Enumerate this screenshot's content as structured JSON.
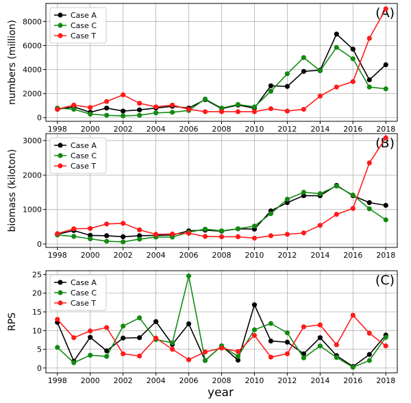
{
  "figure": {
    "xlabel": "year"
  },
  "colors": {
    "Case A": "#000000",
    "Case C": "#138a13",
    "Case T": "#ff1a1a"
  },
  "chart_data": [
    {
      "type": "line",
      "panel_label": "(A)",
      "ylabel": "numbers (million)",
      "xlim": [
        1997.3,
        2018.7
      ],
      "ylim": [
        -300,
        9500
      ],
      "xticks": [
        1998,
        2000,
        2002,
        2004,
        2006,
        2008,
        2010,
        2012,
        2014,
        2016,
        2018
      ],
      "yticks": [
        0,
        2000,
        4000,
        6000,
        8000
      ],
      "grid": true,
      "legend": "top-left",
      "x": [
        1998,
        1999,
        2000,
        2001,
        2002,
        2003,
        2004,
        2005,
        2006,
        2007,
        2008,
        2009,
        2010,
        2011,
        2012,
        2013,
        2014,
        2015,
        2016,
        2017,
        2018
      ],
      "series": [
        {
          "name": "Case A",
          "values": [
            700,
            900,
            450,
            800,
            550,
            650,
            800,
            950,
            800,
            1500,
            750,
            1050,
            800,
            2650,
            2600,
            3850,
            3950,
            6950,
            5700,
            3150,
            4400
          ]
        },
        {
          "name": "Case C",
          "values": [
            800,
            700,
            300,
            200,
            150,
            200,
            400,
            450,
            600,
            1550,
            800,
            1100,
            900,
            2200,
            3650,
            5000,
            3900,
            5850,
            4900,
            2550,
            2400
          ]
        },
        {
          "name": "Case T",
          "values": [
            700,
            1050,
            850,
            1350,
            1900,
            1200,
            900,
            1050,
            700,
            500,
            500,
            500,
            500,
            750,
            550,
            700,
            1800,
            2550,
            3000,
            6600,
            9050
          ]
        }
      ]
    },
    {
      "type": "line",
      "panel_label": "(B)",
      "ylabel": "biomass (kiloton)",
      "xlim": [
        1997.3,
        2018.7
      ],
      "ylim": [
        -100,
        3200
      ],
      "xticks": [
        1998,
        2000,
        2002,
        2004,
        2006,
        2008,
        2010,
        2012,
        2014,
        2016,
        2018
      ],
      "yticks": [
        0,
        1000,
        2000,
        3000
      ],
      "grid": true,
      "legend": "top-left",
      "x": [
        1998,
        1999,
        2000,
        2001,
        2002,
        2003,
        2004,
        2005,
        2006,
        2007,
        2008,
        2009,
        2010,
        2011,
        2012,
        2013,
        2014,
        2015,
        2016,
        2017,
        2018
      ],
      "series": [
        {
          "name": "Case A",
          "values": [
            280,
            390,
            250,
            240,
            210,
            240,
            250,
            260,
            380,
            400,
            370,
            440,
            430,
            960,
            1200,
            1400,
            1400,
            1700,
            1400,
            1200,
            1120
          ]
        },
        {
          "name": "Case C",
          "values": [
            260,
            220,
            150,
            80,
            60,
            140,
            200,
            200,
            340,
            430,
            380,
            440,
            520,
            880,
            1300,
            1500,
            1460,
            1680,
            1420,
            1020,
            700
          ]
        },
        {
          "name": "Case T",
          "values": [
            300,
            440,
            450,
            580,
            600,
            410,
            280,
            290,
            310,
            220,
            210,
            210,
            170,
            240,
            280,
            320,
            540,
            860,
            1030,
            2350,
            3080
          ]
        }
      ]
    },
    {
      "type": "line",
      "panel_label": "(C)",
      "ylabel": "RPS",
      "xlim": [
        1997.3,
        2018.7
      ],
      "ylim": [
        -1.3,
        26
      ],
      "xticks": [
        1998,
        2000,
        2002,
        2004,
        2006,
        2008,
        2010,
        2012,
        2014,
        2016,
        2018
      ],
      "yticks": [
        0,
        5,
        10,
        15,
        20,
        25
      ],
      "grid": true,
      "legend": "top-left",
      "x": [
        1998,
        1999,
        2000,
        2001,
        2002,
        2003,
        2004,
        2005,
        2006,
        2007,
        2008,
        2009,
        2010,
        2011,
        2012,
        2013,
        2014,
        2015,
        2016,
        2017,
        2018
      ],
      "series": [
        {
          "name": "Case A",
          "values": [
            12.2,
            1.8,
            8.2,
            4.6,
            8.0,
            8.1,
            12.4,
            6.3,
            11.8,
            2.0,
            5.9,
            2.1,
            16.9,
            7.2,
            6.9,
            3.8,
            8.1,
            3.3,
            0.4,
            3.6,
            8.8
          ]
        },
        {
          "name": "Case C",
          "values": [
            5.5,
            1.4,
            3.4,
            3.1,
            11.2,
            13.4,
            7.6,
            6.7,
            24.6,
            2.0,
            5.9,
            3.1,
            10.2,
            11.9,
            9.4,
            2.7,
            5.9,
            2.8,
            0.2,
            2.0,
            8.2
          ]
        },
        {
          "name": "Case T",
          "values": [
            13.0,
            8.1,
            9.9,
            10.8,
            3.8,
            3.2,
            8.0,
            5.0,
            2.2,
            4.3,
            5.3,
            4.4,
            8.7,
            2.9,
            3.8,
            11.0,
            11.5,
            6.2,
            14.1,
            9.3,
            5.9
          ]
        }
      ]
    }
  ]
}
